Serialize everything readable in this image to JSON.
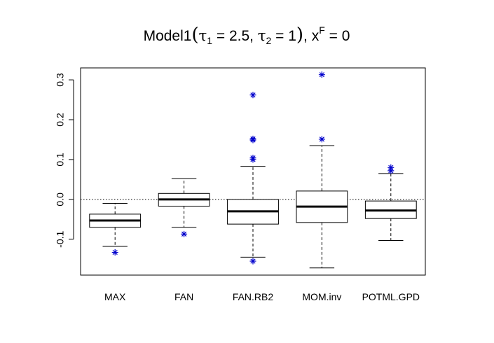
{
  "chart_data": {
    "type": "boxplot",
    "title": {
      "model": "Model1",
      "tau1": "τ",
      "tau1_sub": "1",
      "tau1_val": " = 2.5, ",
      "tau2": "τ",
      "tau2_sub": "2",
      "tau2_val": " = 1",
      "xf": ", x",
      "xf_sup": "F",
      "xf_val": " = 0"
    },
    "xlabel": "",
    "ylabel": "",
    "ylim": [
      -0.19,
      0.33
    ],
    "yticks": [
      -0.1,
      0.0,
      0.1,
      0.2,
      0.3
    ],
    "ytick_labels": [
      "-0.1",
      "0.0",
      "0.1",
      "0.2",
      "0.3"
    ],
    "reference_line": 0,
    "grid": false,
    "outlier_color": "#0000cc",
    "categories": [
      "MAX",
      "FAN",
      "FAN.RB2",
      "MOM.inv",
      "POTML.GPD"
    ],
    "boxes": [
      {
        "label": "MAX",
        "whisker_low": -0.118,
        "q1": -0.07,
        "median": -0.053,
        "q3": -0.037,
        "whisker_high": -0.01,
        "outliers": [
          -0.133
        ]
      },
      {
        "label": "FAN",
        "whisker_low": -0.07,
        "q1": -0.017,
        "median": 0.0,
        "q3": 0.015,
        "whisker_high": 0.052,
        "outliers": [
          -0.087
        ]
      },
      {
        "label": "FAN.RB2",
        "whisker_low": -0.145,
        "q1": -0.062,
        "median": -0.03,
        "q3": 0.0,
        "whisker_high": 0.083,
        "outliers": [
          0.262,
          0.152,
          0.149,
          0.104,
          0.1,
          -0.155
        ]
      },
      {
        "label": "MOM.inv",
        "whisker_low": -0.172,
        "q1": -0.058,
        "median": -0.018,
        "q3": 0.021,
        "whisker_high": 0.135,
        "outliers": [
          0.313,
          0.151
        ]
      },
      {
        "label": "POTML.GPD",
        "whisker_low": -0.103,
        "q1": -0.048,
        "median": -0.028,
        "q3": -0.004,
        "whisker_high": 0.065,
        "outliers": [
          0.08,
          0.072
        ]
      }
    ]
  }
}
